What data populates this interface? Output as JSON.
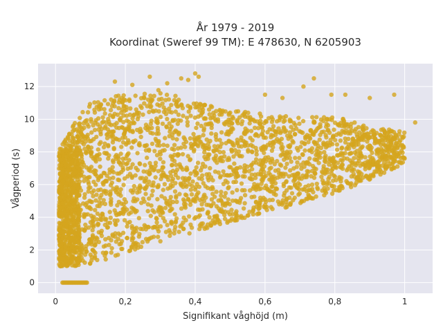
{
  "chart_data": {
    "type": "scatter",
    "title_line1": "År 1979 - 2019",
    "title_line2": "Koordinat (Sweref 99 TM): E 478630, N 6205903",
    "xlabel": "Signifikant våghöjd (m)",
    "ylabel": "Vågperiod (s)",
    "xlim": [
      -0.05,
      1.08
    ],
    "ylim": [
      -0.65,
      13.4
    ],
    "x_ticks": [
      0,
      0.2,
      0.4,
      0.6,
      0.8,
      1
    ],
    "x_tick_labels": [
      "0",
      "0,2",
      "0,4",
      "0,6",
      "0,8",
      "1"
    ],
    "y_ticks": [
      0,
      2,
      4,
      6,
      8,
      10,
      12
    ],
    "y_tick_labels": [
      "0",
      "2",
      "4",
      "6",
      "8",
      "10",
      "12"
    ],
    "grid": true,
    "marker_color": "#D4A51E",
    "plot_bg": "#E5E5EF",
    "zero_period_points": {
      "x_min": 0.02,
      "x_max": 0.09,
      "y": 0
    },
    "envelope": [
      {
        "x": 0.01,
        "y_min": 1.0,
        "y_max": 8.0
      },
      {
        "x": 0.05,
        "y_min": 1.0,
        "y_max": 9.8
      },
      {
        "x": 0.1,
        "y_min": 1.1,
        "y_max": 11.0
      },
      {
        "x": 0.2,
        "y_min": 1.8,
        "y_max": 11.6
      },
      {
        "x": 0.3,
        "y_min": 2.5,
        "y_max": 11.8
      },
      {
        "x": 0.4,
        "y_min": 3.1,
        "y_max": 11.0
      },
      {
        "x": 0.5,
        "y_min": 3.7,
        "y_max": 10.6
      },
      {
        "x": 0.6,
        "y_min": 4.3,
        "y_max": 10.3
      },
      {
        "x": 0.7,
        "y_min": 4.8,
        "y_max": 10.1
      },
      {
        "x": 0.8,
        "y_min": 5.4,
        "y_max": 10.2
      },
      {
        "x": 0.9,
        "y_min": 6.3,
        "y_max": 9.5
      },
      {
        "x": 1.0,
        "y_min": 7.3,
        "y_max": 9.3
      }
    ],
    "outliers": [
      {
        "x": 0.27,
        "y": 12.6
      },
      {
        "x": 0.32,
        "y": 12.2
      },
      {
        "x": 0.36,
        "y": 12.5
      },
      {
        "x": 0.38,
        "y": 12.4
      },
      {
        "x": 0.4,
        "y": 12.8
      },
      {
        "x": 0.41,
        "y": 12.6
      },
      {
        "x": 0.74,
        "y": 12.5
      },
      {
        "x": 0.71,
        "y": 12.0
      },
      {
        "x": 0.79,
        "y": 11.5
      },
      {
        "x": 0.83,
        "y": 11.5
      },
      {
        "x": 0.9,
        "y": 11.3
      },
      {
        "x": 0.97,
        "y": 11.5
      },
      {
        "x": 1.03,
        "y": 9.8
      },
      {
        "x": 0.65,
        "y": 11.3
      },
      {
        "x": 0.6,
        "y": 11.5
      },
      {
        "x": 0.17,
        "y": 12.3
      },
      {
        "x": 0.22,
        "y": 12.1
      }
    ]
  }
}
